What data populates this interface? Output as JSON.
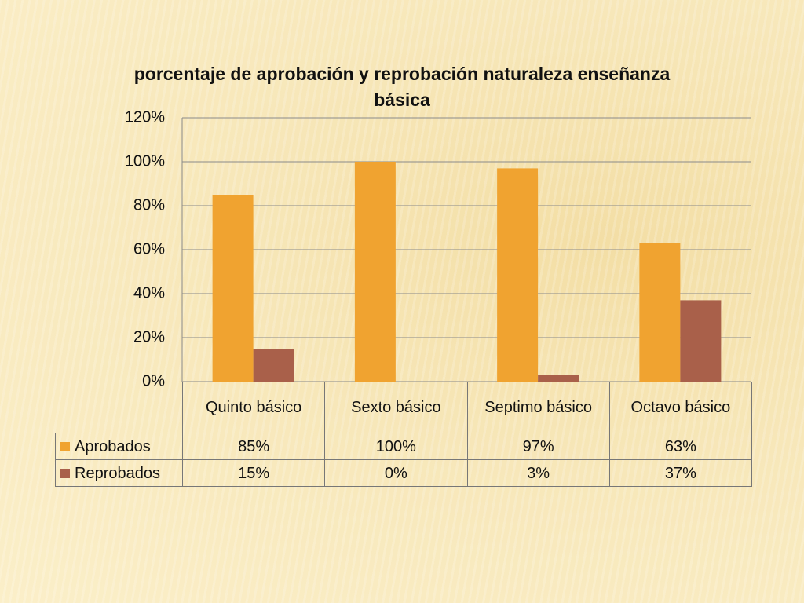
{
  "chart_data": {
    "type": "bar",
    "title": "porcentaje de aprobación y reprobación naturaleza enseñanza básica",
    "categories": [
      "Quinto básico",
      "Sexto básico",
      "Septimo básico",
      "Octavo básico"
    ],
    "series": [
      {
        "name": "Aprobados",
        "color": "#f0a330",
        "values": [
          85,
          100,
          97,
          63
        ],
        "value_labels": [
          "85%",
          "100%",
          "97%",
          "63%"
        ]
      },
      {
        "name": "Reprobados",
        "color": "#a9604a",
        "values": [
          15,
          0,
          3,
          37
        ],
        "value_labels": [
          "15%",
          "0%",
          "3%",
          "37%"
        ]
      }
    ],
    "ylim": [
      0,
      120
    ],
    "yticks": [
      {
        "value": 0,
        "label": "0%"
      },
      {
        "value": 20,
        "label": "20%"
      },
      {
        "value": 40,
        "label": "40%"
      },
      {
        "value": 60,
        "label": "60%"
      },
      {
        "value": 80,
        "label": "80%"
      },
      {
        "value": 100,
        "label": "100%"
      },
      {
        "value": 120,
        "label": "120%"
      }
    ],
    "grid": true,
    "legend": "table"
  }
}
